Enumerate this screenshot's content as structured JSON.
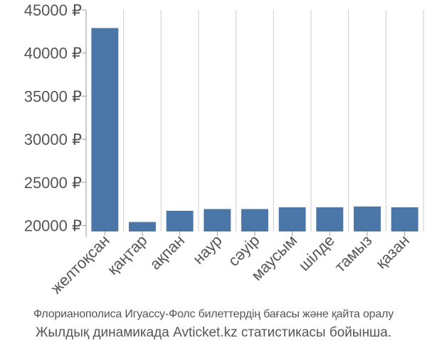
{
  "chart_data": {
    "type": "bar",
    "categories": [
      "желтоқсан",
      "қаңтар",
      "ақпан",
      "наур",
      "сәуір",
      "маусым",
      "шілде",
      "тамыз",
      "қазан"
    ],
    "values": [
      42900,
      20400,
      21700,
      21900,
      21900,
      22100,
      22100,
      22200,
      22100
    ],
    "ylim": [
      19300,
      45000
    ],
    "yticks": [
      20000,
      25000,
      30000,
      35000,
      40000,
      45000
    ],
    "ytick_labels": [
      "20000 ₽",
      "25000 ₽",
      "30000 ₽",
      "35000 ₽",
      "40000 ₽",
      "45000 ₽"
    ],
    "title": "",
    "xlabel": "",
    "ylabel": "",
    "grid": "vertical",
    "legend": "none",
    "colors": {
      "bar": "#4b76a8",
      "grid": "#cccccc",
      "axis": "#999999",
      "tick_text": "#555555"
    }
  },
  "caption": {
    "line1": "Флорианополиса Игуассу-Фолс билеттердің бағасы және қайта оралу",
    "line2": "Жылдық динамикада Avticket.kz статистикасы бойынша."
  }
}
